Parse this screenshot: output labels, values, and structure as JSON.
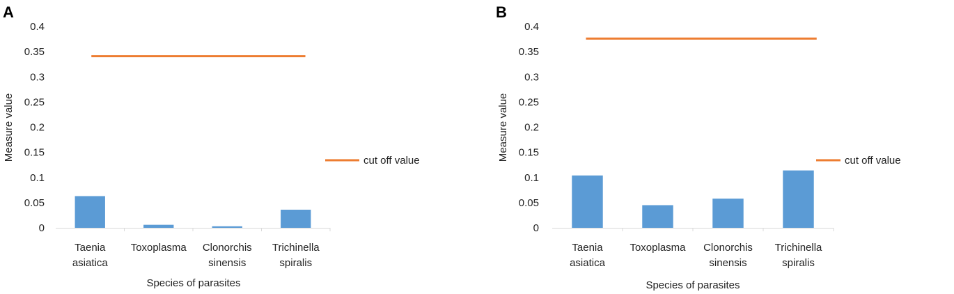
{
  "chart_data": [
    {
      "panel": "A",
      "type": "bar",
      "categories": [
        [
          "Taenia",
          "asiatica"
        ],
        [
          "Toxoplasma"
        ],
        [
          "Clonorchis",
          "sinensis"
        ],
        [
          "Trichinella",
          "spiralis"
        ]
      ],
      "values": [
        0.063,
        0.006,
        0.003,
        0.036
      ],
      "bar_color": "#5B9BD5",
      "cutoff": {
        "name": "cut off value",
        "value": 0.341,
        "color": "#ED7D31"
      },
      "xlabel": "Species of parasites",
      "ylabel": "Measure value",
      "ylim": [
        0,
        0.4
      ],
      "yticks": [
        "0",
        "0.05",
        "0.1",
        "0.15",
        "0.2",
        "0.25",
        "0.3",
        "0.35",
        "0.4"
      ],
      "legend": "right"
    },
    {
      "panel": "B",
      "type": "bar",
      "categories": [
        [
          "Taenia",
          "asiatica"
        ],
        [
          "Toxoplasma"
        ],
        [
          "Clonorchis",
          "sinensis"
        ],
        [
          "Trichinella",
          "spiralis"
        ]
      ],
      "values": [
        0.104,
        0.045,
        0.058,
        0.114
      ],
      "bar_color": "#5B9BD5",
      "cutoff": {
        "name": "cut off value",
        "value": 0.376,
        "color": "#ED7D31"
      },
      "xlabel": "Species of parasites",
      "ylabel": "Measure value",
      "ylim": [
        0,
        0.4
      ],
      "yticks": [
        "0",
        "0.05",
        "0.1",
        "0.15",
        "0.2",
        "0.25",
        "0.3",
        "0.35",
        "0.4"
      ],
      "legend": "right"
    }
  ]
}
